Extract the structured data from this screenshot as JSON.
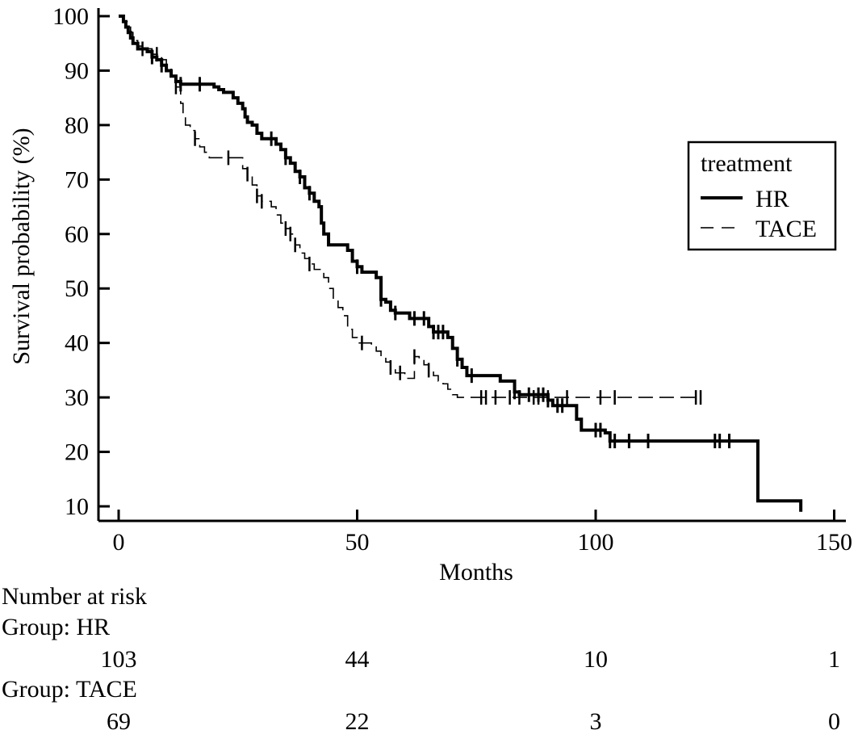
{
  "chart_data": {
    "type": "line",
    "subtype": "kaplan-meier",
    "xlabel": "Months",
    "ylabel": "Survival probability (%)",
    "xlim": [
      -2,
      152
    ],
    "ylim": [
      8,
      102
    ],
    "xticks": [
      0,
      50,
      100,
      150
    ],
    "yticks": [
      10,
      20,
      30,
      40,
      50,
      60,
      70,
      80,
      90,
      100
    ],
    "grid": false,
    "legend": {
      "title": "treatment",
      "placement": "right"
    },
    "series": [
      {
        "name": "HR",
        "style": "solid-thick",
        "color": "#000000",
        "steps": [
          [
            0,
            100
          ],
          [
            1,
            99
          ],
          [
            1.5,
            98
          ],
          [
            2,
            97
          ],
          [
            2.5,
            96
          ],
          [
            3,
            95
          ],
          [
            4,
            94
          ],
          [
            6,
            93.5
          ],
          [
            7,
            92.5
          ],
          [
            8,
            92
          ],
          [
            9,
            91
          ],
          [
            10,
            90
          ],
          [
            11,
            89
          ],
          [
            12,
            88
          ],
          [
            13,
            87.5
          ],
          [
            20,
            87
          ],
          [
            21,
            86.5
          ],
          [
            22,
            86
          ],
          [
            24,
            85
          ],
          [
            25,
            84
          ],
          [
            26,
            83
          ],
          [
            26.5,
            81.5
          ],
          [
            27,
            80.5
          ],
          [
            28,
            80
          ],
          [
            29,
            78.5
          ],
          [
            30,
            77.5
          ],
          [
            33,
            76.5
          ],
          [
            34,
            75.5
          ],
          [
            35,
            74
          ],
          [
            36,
            73
          ],
          [
            37,
            71.5
          ],
          [
            38,
            70.5
          ],
          [
            39,
            68.5
          ],
          [
            40,
            67.5
          ],
          [
            41,
            66
          ],
          [
            42,
            65
          ],
          [
            42.5,
            62
          ],
          [
            43,
            60
          ],
          [
            44,
            58
          ],
          [
            48,
            57
          ],
          [
            49,
            55
          ],
          [
            50,
            54
          ],
          [
            51,
            53
          ],
          [
            54,
            52
          ],
          [
            55,
            48
          ],
          [
            56,
            47.5
          ],
          [
            57,
            46
          ],
          [
            58,
            45.5
          ],
          [
            61,
            44.5
          ],
          [
            65,
            43
          ],
          [
            66,
            42
          ],
          [
            69,
            41
          ],
          [
            70,
            39
          ],
          [
            71,
            37
          ],
          [
            72,
            35.5
          ],
          [
            73,
            34
          ],
          [
            80,
            33
          ],
          [
            83,
            31
          ],
          [
            84,
            30.5
          ],
          [
            90,
            29.5
          ],
          [
            91,
            28.5
          ],
          [
            96,
            26
          ],
          [
            97,
            24
          ],
          [
            102,
            23.5
          ],
          [
            103,
            22
          ],
          [
            134,
            11
          ],
          [
            143,
            9
          ]
        ],
        "end": 143
      },
      {
        "name": "TACE",
        "style": "dashed-thin",
        "color": "#000000",
        "steps": [
          [
            0,
            100
          ],
          [
            1,
            99
          ],
          [
            2,
            98
          ],
          [
            2.5,
            97
          ],
          [
            3,
            95.5
          ],
          [
            4,
            94.5
          ],
          [
            5,
            94
          ],
          [
            7,
            93
          ],
          [
            9,
            92
          ],
          [
            10,
            90.5
          ],
          [
            11,
            89
          ],
          [
            12,
            87
          ],
          [
            13,
            84
          ],
          [
            13.5,
            82
          ],
          [
            14,
            80
          ],
          [
            15,
            79
          ],
          [
            16,
            77.5
          ],
          [
            17,
            76
          ],
          [
            18,
            75
          ],
          [
            19,
            74
          ],
          [
            26,
            72
          ],
          [
            27,
            71
          ],
          [
            28,
            69
          ],
          [
            29,
            67
          ],
          [
            30,
            66
          ],
          [
            32,
            65
          ],
          [
            33,
            63.5
          ],
          [
            34,
            62
          ],
          [
            35,
            61
          ],
          [
            36,
            60
          ],
          [
            37,
            58
          ],
          [
            38,
            56.5
          ],
          [
            39,
            55.5
          ],
          [
            40,
            54.5
          ],
          [
            41,
            53.5
          ],
          [
            43,
            52
          ],
          [
            44,
            50
          ],
          [
            45,
            48
          ],
          [
            46,
            46.5
          ],
          [
            47,
            45
          ],
          [
            48,
            42.5
          ],
          [
            49,
            41
          ],
          [
            50,
            40
          ],
          [
            53,
            39.5
          ],
          [
            54,
            38.5
          ],
          [
            55,
            37.5
          ],
          [
            56,
            36.5
          ],
          [
            57,
            35.5
          ],
          [
            58,
            34.5
          ],
          [
            60,
            33.5
          ],
          [
            62,
            37.5
          ],
          [
            63,
            37
          ],
          [
            64,
            36
          ],
          [
            65,
            35
          ],
          [
            66,
            34
          ],
          [
            67,
            33
          ],
          [
            68,
            32.5
          ],
          [
            69,
            31.5
          ],
          [
            70,
            30.5
          ],
          [
            71,
            30
          ]
        ],
        "end": 122
      }
    ],
    "censor_marks": {
      "HR": [
        7,
        9,
        13,
        17,
        32,
        35,
        38,
        40,
        50,
        55,
        58,
        62,
        64,
        66,
        67,
        68,
        71,
        74,
        83,
        86,
        88,
        89,
        90,
        92,
        93,
        100,
        101,
        103,
        104,
        107,
        111,
        125,
        126,
        128
      ],
      "TACE": [
        5,
        8,
        12,
        16,
        23,
        27,
        29,
        30,
        35,
        36,
        37,
        40,
        51,
        57,
        59,
        62,
        65,
        76,
        77,
        79,
        82,
        84,
        87,
        88,
        90,
        94,
        101,
        104,
        121,
        122
      ]
    },
    "risk_table": {
      "heading": "Number at risk",
      "groups": [
        {
          "label": "Group: HR",
          "counts": [
            "103",
            "44",
            "10",
            "1"
          ]
        },
        {
          "label": "Group: TACE",
          "counts": [
            "69",
            "22",
            "3",
            "0"
          ]
        }
      ]
    }
  }
}
